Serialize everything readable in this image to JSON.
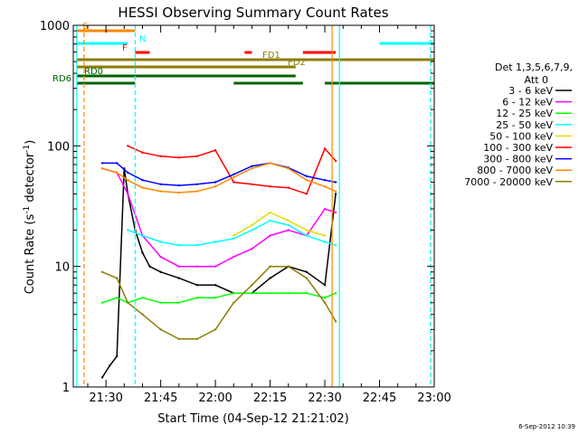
{
  "chart_data": {
    "type": "line",
    "title": "HESSI Observing Summary Count Rates",
    "xlabel": "Start Time (04-Sep-12 21:21:02)",
    "ylabel_main": "Count Rate (s",
    "ylabel_sup1": "-1",
    "ylabel_mid": " detector",
    "ylabel_sup2": "-1",
    "ylabel_end": ")",
    "y_scale": "log",
    "xlim": [
      "21:21:02",
      "23:00:00"
    ],
    "ylim": [
      1,
      1000
    ],
    "x_ticks": [
      "21:30",
      "21:45",
      "22:00",
      "22:15",
      "22:30",
      "22:45",
      "23:00"
    ],
    "y_ticks": [
      "1",
      "10",
      "100",
      "1000"
    ],
    "legend": {
      "header1": "Det 1,3,5,6,7,9,",
      "header2": "Att 0",
      "position": "right",
      "entries": [
        {
          "label": "3 - 6 keV",
          "color": "#000000"
        },
        {
          "label": "6 - 12 keV",
          "color": "#ff00ff"
        },
        {
          "label": "12 - 25 keV",
          "color": "#00ff00"
        },
        {
          "label": "25 - 50 keV",
          "color": "#00ffff"
        },
        {
          "label": "50 - 100 keV",
          "color": "#e8d800"
        },
        {
          "label": "100 - 300 keV",
          "color": "#ff0000"
        },
        {
          "label": "300 - 800 keV",
          "color": "#0000ff"
        },
        {
          "label": "800 - 7000 keV",
          "color": "#ff8800"
        },
        {
          "label": "7000 - 20000 keV",
          "color": "#8b7d00"
        }
      ]
    },
    "series": [
      {
        "name": "3 - 6 keV",
        "color": "#000000",
        "x": [
          "21:29",
          "21:31",
          "21:33",
          "21:35",
          "21:36",
          "21:38",
          "21:40",
          "21:42",
          "21:45",
          "21:50",
          "21:55",
          "22:00",
          "22:05",
          "22:10",
          "22:15",
          "22:20",
          "22:25",
          "22:30",
          "22:33"
        ],
        "values": [
          1.2,
          1.5,
          1.8,
          65,
          40,
          20,
          13,
          10,
          9,
          8,
          7,
          7,
          6,
          6,
          8,
          10,
          9,
          7,
          40
        ]
      },
      {
        "name": "6 - 12 keV",
        "color": "#ff00ff",
        "x": [
          "21:29",
          "21:33",
          "21:36",
          "21:40",
          "21:45",
          "21:50",
          "21:55",
          "22:00",
          "22:05",
          "22:10",
          "22:15",
          "22:20",
          "22:25",
          "22:30",
          "22:33"
        ],
        "values": [
          65,
          60,
          40,
          18,
          12,
          10,
          10,
          10,
          12,
          14,
          18,
          20,
          18,
          30,
          28
        ]
      },
      {
        "name": "12 - 25 keV",
        "color": "#00ff00",
        "x": [
          "21:29",
          "21:33",
          "21:36",
          "21:40",
          "21:45",
          "21:50",
          "21:55",
          "22:00",
          "22:05",
          "22:10",
          "22:15",
          "22:20",
          "22:25",
          "22:30",
          "22:33"
        ],
        "values": [
          5,
          5.5,
          5,
          5.5,
          5,
          5,
          5.5,
          5.5,
          6,
          6,
          6,
          6,
          6,
          5.5,
          6
        ]
      },
      {
        "name": "25 - 50 keV",
        "color": "#00ffff",
        "x": [
          "21:36",
          "21:40",
          "21:45",
          "21:50",
          "21:55",
          "22:00",
          "22:05",
          "22:10",
          "22:15",
          "22:20",
          "22:25",
          "22:30",
          "22:33"
        ],
        "values": [
          20,
          18,
          16,
          15,
          15,
          16,
          17,
          20,
          24,
          22,
          18,
          16,
          15
        ]
      },
      {
        "name": "50 - 100 keV",
        "color": "#e8d800",
        "x": [
          "22:05",
          "22:10",
          "22:15",
          "22:20",
          "22:25",
          "22:30"
        ],
        "values": [
          18,
          22,
          28,
          24,
          20,
          18
        ]
      },
      {
        "name": "100 - 300 keV",
        "color": "#ff0000",
        "x": [
          "21:36",
          "21:40",
          "21:45",
          "21:50",
          "21:55",
          "22:00",
          "22:05",
          "22:10",
          "22:15",
          "22:20",
          "22:25",
          "22:30",
          "22:33"
        ],
        "values": [
          100,
          88,
          82,
          80,
          82,
          92,
          50,
          48,
          46,
          45,
          40,
          95,
          75
        ]
      },
      {
        "name": "300 - 800 keV",
        "color": "#0000ff",
        "x": [
          "21:29",
          "21:33",
          "21:36",
          "21:40",
          "21:45",
          "21:50",
          "21:55",
          "22:00",
          "22:05",
          "22:10",
          "22:15",
          "22:20",
          "22:25",
          "22:30",
          "22:33"
        ],
        "values": [
          72,
          72,
          60,
          52,
          48,
          47,
          48,
          50,
          58,
          68,
          72,
          66,
          56,
          52,
          50
        ]
      },
      {
        "name": "800 - 7000 keV",
        "color": "#ff8800",
        "x": [
          "21:29",
          "21:33",
          "21:36",
          "21:40",
          "21:45",
          "21:50",
          "21:55",
          "22:00",
          "22:05",
          "22:10",
          "22:15",
          "22:20",
          "22:25",
          "22:30",
          "22:33"
        ],
        "values": [
          65,
          60,
          52,
          45,
          42,
          41,
          42,
          46,
          55,
          65,
          72,
          65,
          52,
          46,
          42
        ]
      },
      {
        "name": "7000 - 20000 keV",
        "color": "#8b7d00",
        "x": [
          "21:29",
          "21:33",
          "21:36",
          "21:40",
          "21:45",
          "21:50",
          "21:55",
          "22:00",
          "22:05",
          "22:10",
          "22:15",
          "22:20",
          "22:25",
          "22:30",
          "22:33"
        ],
        "values": [
          9,
          8,
          5,
          4,
          3,
          2.5,
          2.5,
          3,
          5,
          7,
          10,
          10,
          8,
          5,
          3.5
        ]
      }
    ],
    "annotations": {
      "vertical_lines": [
        {
          "time": "21:22",
          "color": "#00ffff"
        },
        {
          "time": "21:24",
          "color": "#ff8800",
          "dashed": true
        },
        {
          "time": "21:38",
          "color": "#00ffff",
          "dashed": true
        },
        {
          "time": "22:32",
          "color": "#ff8800"
        },
        {
          "time": "22:34",
          "color": "#00ffff"
        },
        {
          "time": "22:59",
          "color": "#ff8800",
          "dashed": true
        },
        {
          "time": "22:59",
          "color": "#00ffff",
          "dashed": true
        }
      ],
      "flag_bars": [
        {
          "label": "S",
          "color": "#ff8800",
          "segments": [
            [
              "21:22",
              "21:38"
            ]
          ]
        },
        {
          "label": "N",
          "color": "#00ffff",
          "segments": [
            [
              "21:22",
              "21:36"
            ],
            [
              "22:45",
              "23:00"
            ]
          ]
        },
        {
          "label": "F",
          "color": "#ff0000",
          "segments": [
            [
              "21:38",
              "21:42"
            ],
            [
              "22:08",
              "22:10"
            ],
            [
              "22:24",
              "22:33"
            ]
          ]
        },
        {
          "label": "FD1",
          "color": "#8b7d00",
          "segments": [
            [
              "21:22",
              "23:00"
            ]
          ]
        },
        {
          "label": "FD2",
          "color": "#8b7d00",
          "segments": [
            [
              "21:22",
              "22:22"
            ]
          ]
        },
        {
          "label": "RD0",
          "color": "#006400",
          "segments": [
            [
              "21:22",
              "22:22"
            ]
          ]
        },
        {
          "label": "RD6",
          "color": "#006400",
          "segments": [
            [
              "21:22",
              "21:38"
            ],
            [
              "22:05",
              "22:24"
            ],
            [
              "22:30",
              "23:00"
            ]
          ]
        }
      ]
    }
  },
  "footer": {
    "date_stamp": "6-Sep-2012 10:39"
  }
}
